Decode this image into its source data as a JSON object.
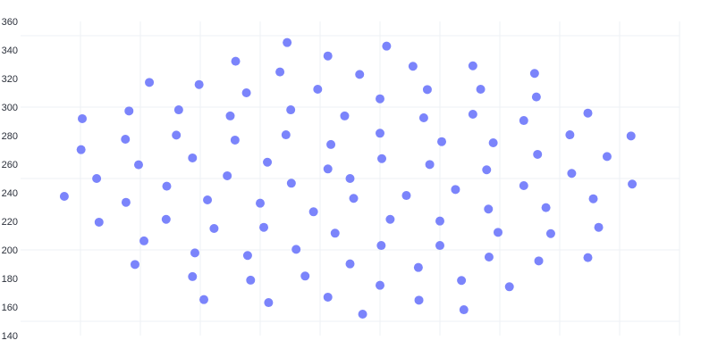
{
  "chart_data": {
    "type": "scatter",
    "title": "",
    "xlabel": "",
    "ylabel": "",
    "xlim": [
      0,
      11
    ],
    "ylim": [
      140,
      360
    ],
    "y_ticks": [
      140,
      160,
      180,
      200,
      220,
      240,
      260,
      280,
      300,
      320,
      340,
      360
    ],
    "y_grid": [
      150,
      200,
      250,
      300,
      350
    ],
    "x_grid": [
      1,
      2,
      3,
      4,
      5,
      6,
      7,
      8,
      9,
      10,
      11
    ],
    "x_tick_labels_shown": false,
    "grid": true,
    "marker_color": "#7b84fb",
    "points": [
      [
        0.73,
        237.5
      ],
      [
        1.03,
        291.9
      ],
      [
        1.01,
        270.2
      ],
      [
        1.27,
        250
      ],
      [
        1.31,
        219.4
      ],
      [
        1.81,
        297.3
      ],
      [
        1.75,
        277.5
      ],
      [
        1.97,
        259.6
      ],
      [
        1.76,
        233.3
      ],
      [
        2.06,
        206.3
      ],
      [
        1.91,
        189.8
      ],
      [
        2.15,
        317.3
      ],
      [
        2.64,
        298.1
      ],
      [
        2.6,
        280.4
      ],
      [
        2.87,
        264.4
      ],
      [
        2.44,
        244.6
      ],
      [
        2.43,
        221.4
      ],
      [
        3.12,
        235
      ],
      [
        3.23,
        215
      ],
      [
        2.91,
        197.9
      ],
      [
        2.87,
        181.3
      ],
      [
        3.06,
        165.2
      ],
      [
        2.98,
        315.8
      ],
      [
        3.59,
        332.1
      ],
      [
        3.77,
        310
      ],
      [
        3.5,
        293.8
      ],
      [
        3.58,
        276.9
      ],
      [
        3.45,
        251.9
      ],
      [
        4.0,
        232.7
      ],
      [
        4.06,
        215.8
      ],
      [
        3.79,
        196.1
      ],
      [
        3.84,
        178.8
      ],
      [
        4.14,
        163.1
      ],
      [
        4.12,
        261.4
      ],
      [
        4.45,
        345.2
      ],
      [
        4.33,
        324.6
      ],
      [
        4.51,
        298.1
      ],
      [
        4.43,
        280.6
      ],
      [
        4.52,
        246.7
      ],
      [
        4.89,
        226.7
      ],
      [
        4.6,
        200.4
      ],
      [
        4.75,
        181.7
      ],
      [
        5.13,
        335.8
      ],
      [
        4.96,
        312.5
      ],
      [
        5.18,
        273.8
      ],
      [
        5.13,
        256.7
      ],
      [
        5.25,
        211.7
      ],
      [
        5.13,
        166.9
      ],
      [
        5.41,
        293.8
      ],
      [
        5.5,
        250
      ],
      [
        5.56,
        236.1
      ],
      [
        5.5,
        190.2
      ],
      [
        5.66,
        322.9
      ],
      [
        6.11,
        342.7
      ],
      [
        6.55,
        328.6
      ],
      [
        7.55,
        328.9
      ],
      [
        8.58,
        323.6
      ],
      [
        6.79,
        312.3
      ],
      [
        7.68,
        312.5
      ],
      [
        8.61,
        307.1
      ],
      [
        6.0,
        305.8
      ],
      [
        6.73,
        292.5
      ],
      [
        7.55,
        295
      ],
      [
        8.4,
        290.6
      ],
      [
        9.47,
        295.8
      ],
      [
        6.0,
        281.7
      ],
      [
        7.03,
        275.8
      ],
      [
        7.89,
        275
      ],
      [
        9.17,
        280.6
      ],
      [
        10.19,
        279.8
      ],
      [
        6.03,
        263.9
      ],
      [
        6.83,
        259.8
      ],
      [
        7.78,
        256.1
      ],
      [
        8.63,
        266.9
      ],
      [
        9.79,
        265.4
      ],
      [
        9.2,
        253.6
      ],
      [
        8.4,
        245
      ],
      [
        10.21,
        246.1
      ],
      [
        6.44,
        238.1
      ],
      [
        7.26,
        242.3
      ],
      [
        7.81,
        228.6
      ],
      [
        8.77,
        229.6
      ],
      [
        9.56,
        235.8
      ],
      [
        6.17,
        221.4
      ],
      [
        7.0,
        220.2
      ],
      [
        7.97,
        212.3
      ],
      [
        8.85,
        211.4
      ],
      [
        9.65,
        215.8
      ],
      [
        6.02,
        203.1
      ],
      [
        7.0,
        203.1
      ],
      [
        6.64,
        187.7
      ],
      [
        7.82,
        195
      ],
      [
        8.65,
        192.3
      ],
      [
        9.47,
        194.6
      ],
      [
        7.36,
        178.6
      ],
      [
        8.16,
        174.2
      ],
      [
        6.0,
        175.2
      ],
      [
        6.65,
        164.8
      ],
      [
        7.4,
        158.1
      ],
      [
        5.71,
        155
      ]
    ]
  }
}
